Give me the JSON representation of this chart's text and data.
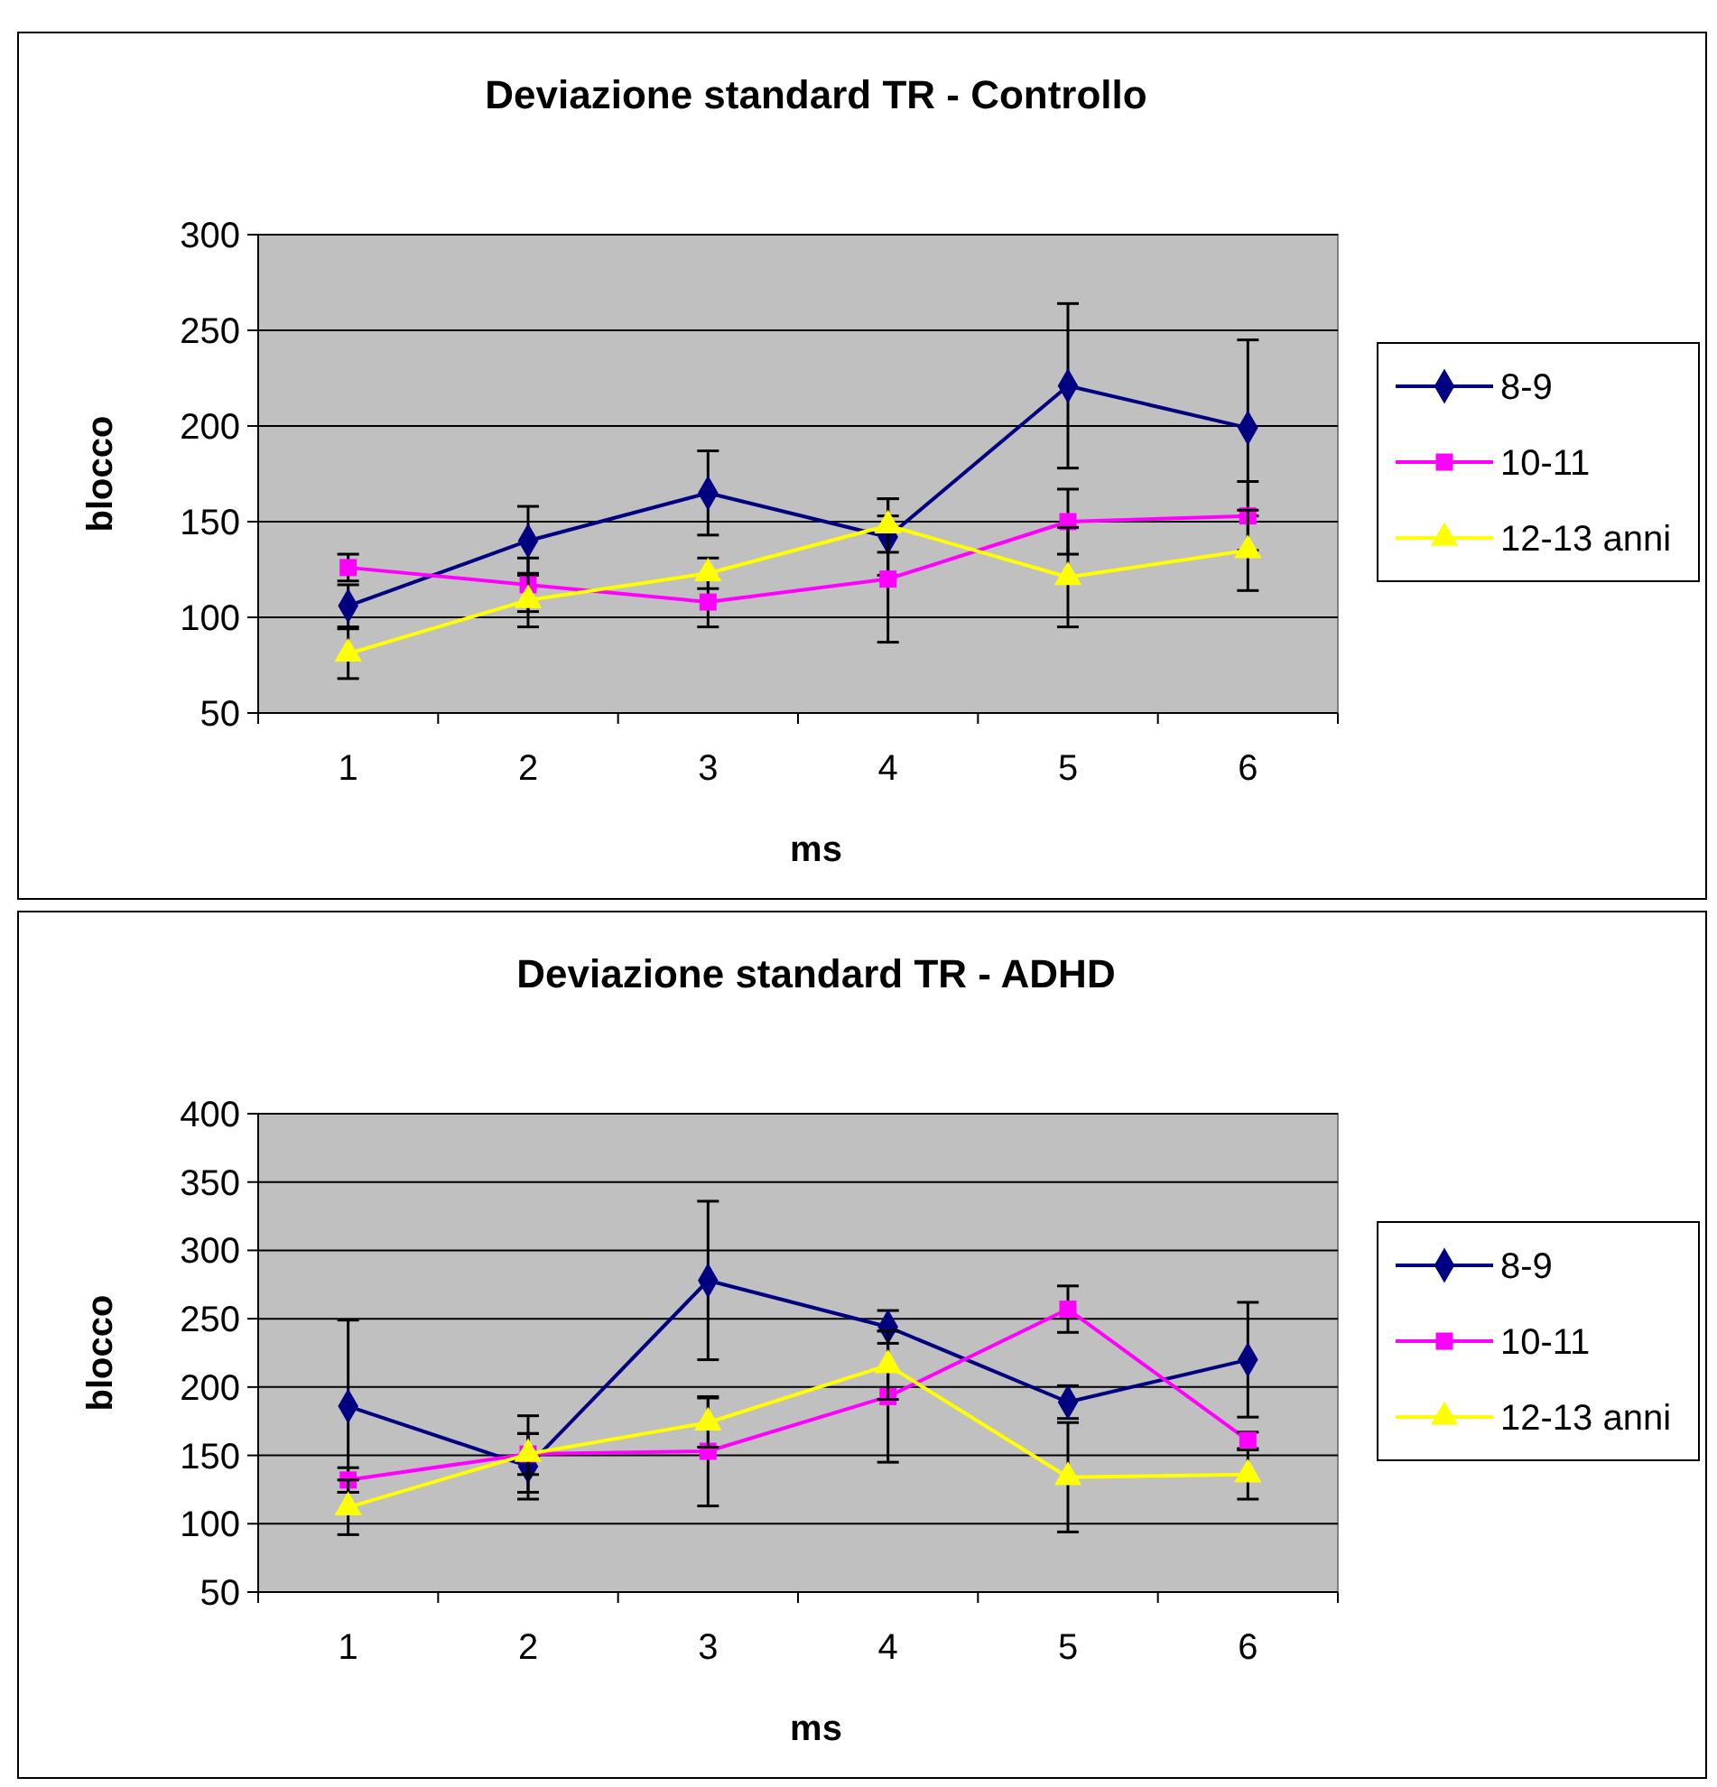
{
  "chart_data": [
    {
      "type": "line",
      "title": "Deviazione standard TR - Controllo",
      "xlabel": "ms",
      "ylabel": "blocco",
      "categories": [
        "1",
        "2",
        "3",
        "4",
        "5",
        "6"
      ],
      "ylim": [
        50,
        300
      ],
      "yticks": [
        50,
        100,
        150,
        200,
        250,
        300
      ],
      "grid": "y",
      "legend": "right",
      "series": [
        {
          "name": "8-9",
          "color": "#000080",
          "marker": "diamond",
          "values": [
            106,
            140,
            165,
            142,
            221,
            199
          ],
          "errors": [
            11,
            18,
            22,
            20,
            43,
            46
          ]
        },
        {
          "name": "10-11",
          "color": "#ff00ff",
          "marker": "square",
          "values": [
            126,
            117,
            108,
            120,
            150,
            153
          ],
          "errors": [
            7,
            14,
            13,
            33,
            17,
            18
          ]
        },
        {
          "name": "12-13 anni",
          "color": "#ffff00",
          "marker": "triangle",
          "values": [
            81,
            109,
            123,
            148,
            121,
            135
          ],
          "errors": [
            13,
            14,
            8,
            14,
            26,
            21
          ]
        }
      ]
    },
    {
      "type": "line",
      "title": "Deviazione standard TR - ADHD",
      "xlabel": "ms",
      "ylabel": "blocco",
      "categories": [
        "1",
        "2",
        "3",
        "4",
        "5",
        "6"
      ],
      "ylim": [
        50,
        400
      ],
      "yticks": [
        50,
        100,
        150,
        200,
        250,
        300,
        350,
        400
      ],
      "grid": "y",
      "legend": "right",
      "series": [
        {
          "name": "8-9",
          "color": "#000080",
          "marker": "diamond",
          "values": [
            186,
            142,
            278,
            244,
            189,
            220
          ],
          "errors": [
            63,
            24,
            58,
            12,
            12,
            42
          ]
        },
        {
          "name": "10-11",
          "color": "#ff00ff",
          "marker": "square",
          "values": [
            132,
            151,
            153,
            193,
            257,
            161
          ],
          "errors": [
            9,
            28,
            40,
            48,
            17,
            6
          ]
        },
        {
          "name": "12-13 anni",
          "color": "#ffff00",
          "marker": "triangle",
          "values": [
            112,
            151,
            174,
            216,
            134,
            136
          ],
          "errors": [
            20,
            15,
            18,
            25,
            40,
            18
          ]
        }
      ]
    }
  ]
}
